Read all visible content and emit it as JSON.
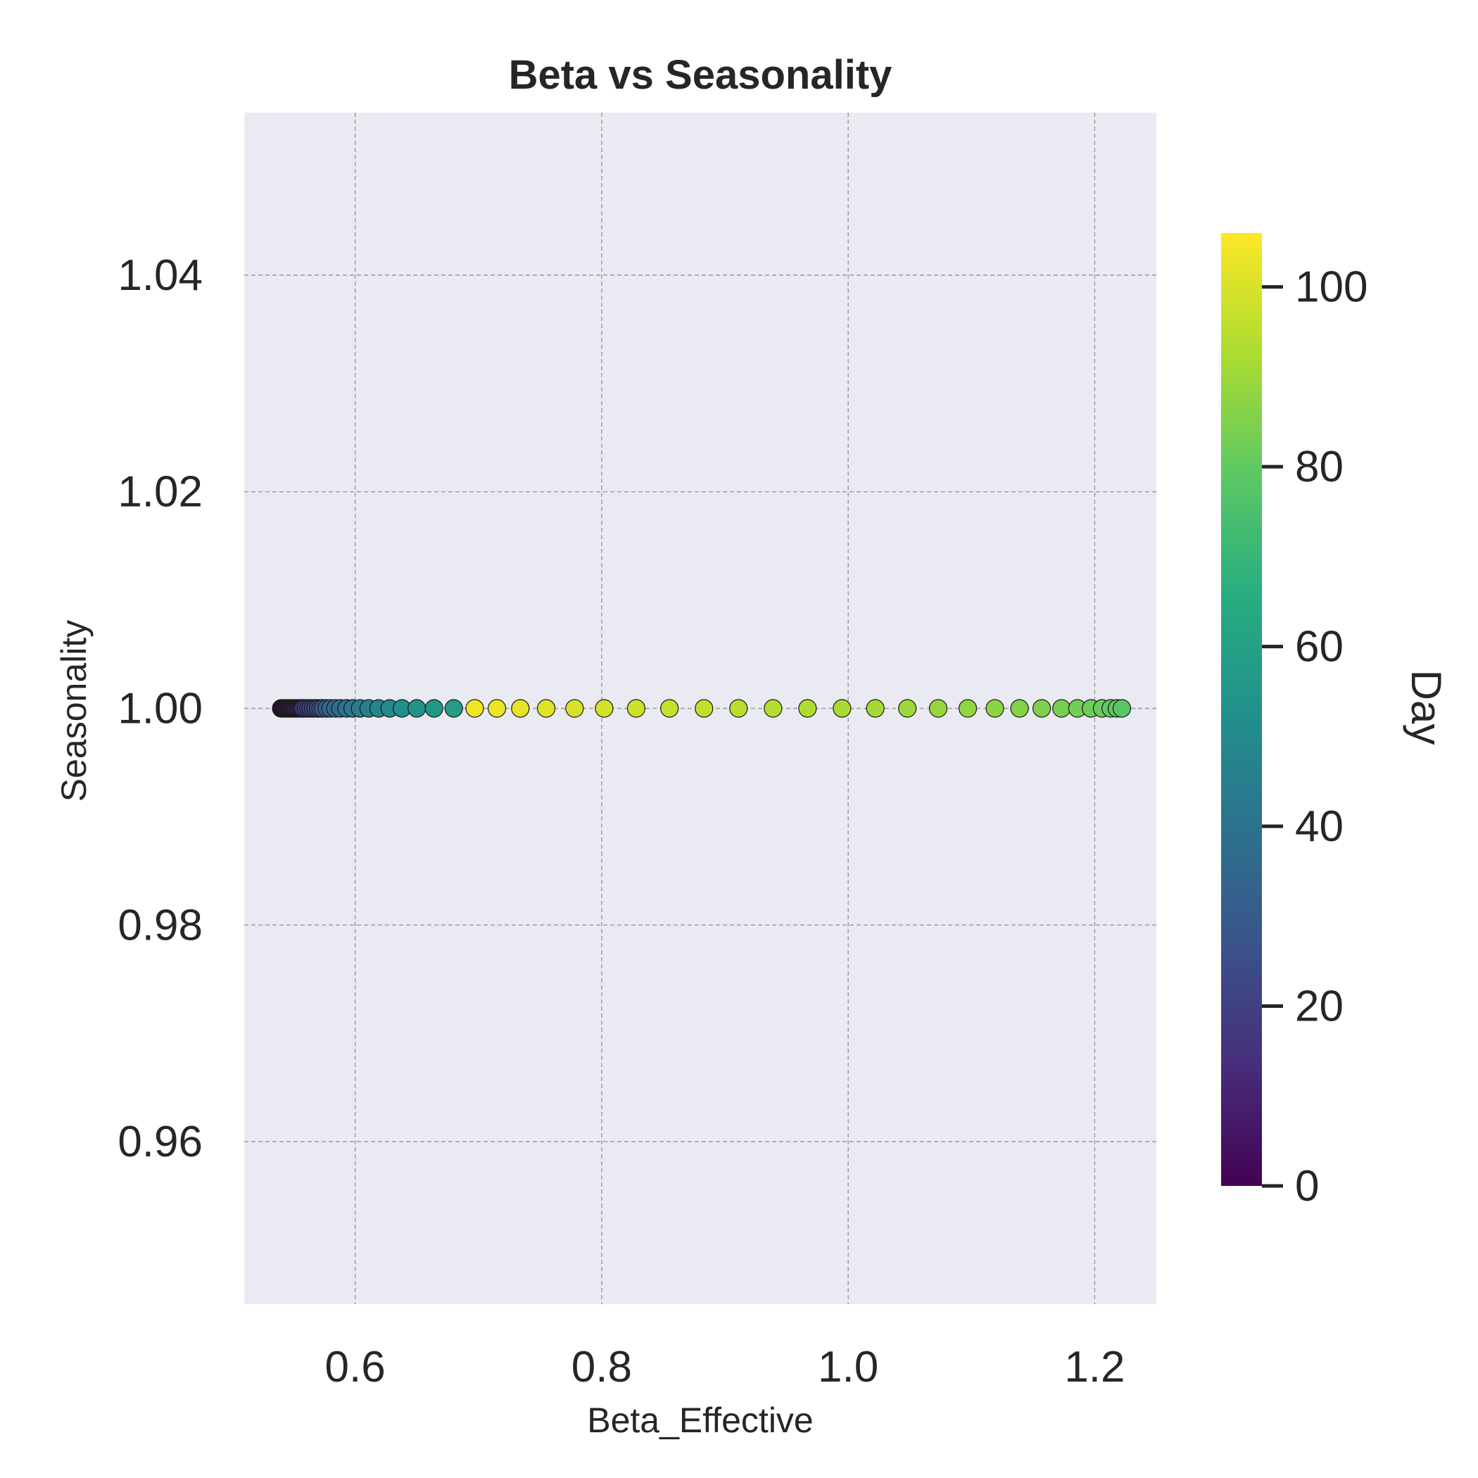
{
  "chart_data": {
    "type": "scatter",
    "title": "Beta vs Seasonality",
    "xlabel": "Beta_Effective",
    "ylabel": "Seasonality",
    "xlim": [
      0.51,
      1.25
    ],
    "ylim": [
      0.945,
      1.055
    ],
    "xticks": [
      0.6,
      0.8,
      1.0,
      1.2
    ],
    "xtick_labels": [
      "0.6",
      "0.8",
      "1.0",
      "1.2"
    ],
    "yticks": [
      0.96,
      0.98,
      1.0,
      1.02,
      1.04
    ],
    "ytick_labels": [
      "0.96",
      "0.98",
      "1.00",
      "1.02",
      "1.04"
    ],
    "grid": true,
    "background": "#eaeaf2",
    "colormap": "viridis",
    "colorbar": {
      "label": "Day",
      "range": [
        0,
        106
      ],
      "ticks": [
        0,
        20,
        40,
        60,
        80,
        100
      ],
      "tick_labels": [
        "0",
        "20",
        "40",
        "60",
        "80",
        "100"
      ]
    },
    "series": [
      {
        "x": [
          0.54,
          0.541,
          0.542,
          0.543,
          0.544,
          0.545,
          0.546,
          0.547,
          0.548,
          0.549,
          0.55,
          0.551,
          0.552,
          0.553,
          0.554,
          0.555,
          0.556,
          0.557,
          0.558,
          0.56,
          0.562,
          0.564,
          0.566,
          0.568,
          0.57,
          0.572,
          0.574,
          0.577,
          0.58,
          0.584,
          0.588,
          0.593,
          0.598,
          0.604,
          0.611,
          0.619,
          0.628,
          0.638,
          0.65,
          0.664,
          0.68,
          0.697,
          0.715,
          0.734,
          0.755,
          0.778,
          0.802,
          0.828,
          0.855,
          0.883,
          0.911,
          0.939,
          0.967,
          0.995,
          1.022,
          1.048,
          1.073,
          1.097,
          1.119,
          1.139,
          1.157,
          1.173,
          1.186,
          1.197,
          1.206,
          1.213,
          1.218,
          1.222
        ],
        "y": [
          1.0,
          1.0,
          1.0,
          1.0,
          1.0,
          1.0,
          1.0,
          1.0,
          1.0,
          1.0,
          1.0,
          1.0,
          1.0,
          1.0,
          1.0,
          1.0,
          1.0,
          1.0,
          1.0,
          1.0,
          1.0,
          1.0,
          1.0,
          1.0,
          1.0,
          1.0,
          1.0,
          1.0,
          1.0,
          1.0,
          1.0,
          1.0,
          1.0,
          1.0,
          1.0,
          1.0,
          1.0,
          1.0,
          1.0,
          1.0,
          1.0,
          1.0,
          1.0,
          1.0,
          1.0,
          1.0,
          1.0,
          1.0,
          1.0,
          1.0,
          1.0,
          1.0,
          1.0,
          1.0,
          1.0,
          1.0,
          1.0,
          1.0,
          1.0,
          1.0,
          1.0,
          1.0,
          1.0,
          1.0,
          1.0,
          1.0,
          1.0,
          1.0
        ],
        "day": [
          0,
          1,
          2,
          3,
          4,
          5,
          6,
          7,
          8,
          9,
          10,
          11,
          12,
          13,
          14,
          15,
          16,
          17,
          18,
          19,
          20,
          21,
          22,
          24,
          26,
          28,
          30,
          32,
          34,
          36,
          38,
          40,
          42,
          44,
          46,
          48,
          50,
          52,
          54,
          56,
          58,
          104,
          103,
          102,
          101,
          100,
          99,
          98,
          97,
          96,
          95,
          94,
          93,
          92,
          91,
          90,
          89,
          88,
          87,
          86,
          85,
          84,
          83,
          82,
          81,
          80,
          79,
          78
        ]
      }
    ]
  }
}
